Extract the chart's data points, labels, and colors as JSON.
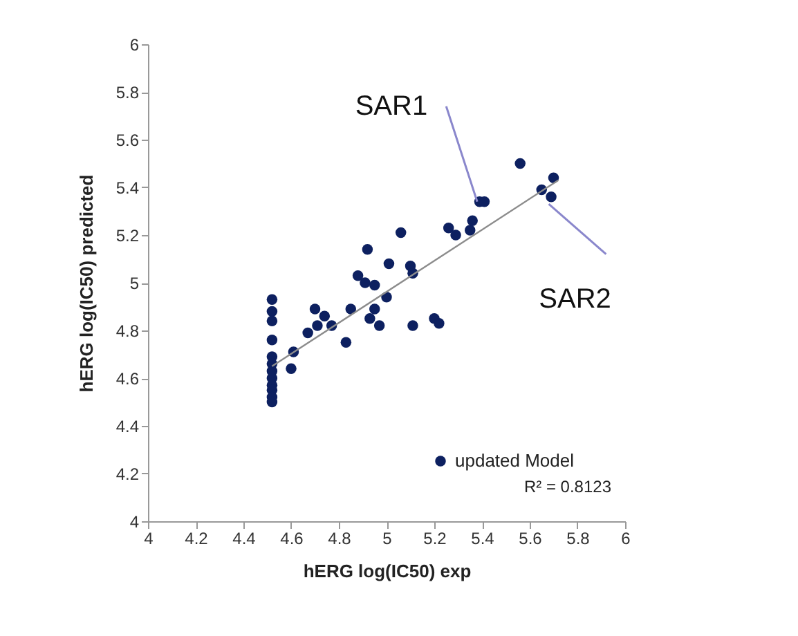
{
  "chart_data": {
    "type": "scatter",
    "xlabel": "hERG log(IC50) exp",
    "ylabel": "hERG log(IC50) predicted",
    "xlim": [
      4,
      6
    ],
    "ylim": [
      4,
      6
    ],
    "xticks": [
      4,
      4.2,
      4.4,
      4.6,
      4.8,
      5,
      5.2,
      5.4,
      5.6,
      5.8,
      6
    ],
    "yticks": [
      4,
      4.2,
      4.4,
      4.6,
      4.8,
      5,
      5.2,
      5.4,
      5.6,
      5.8,
      6
    ],
    "grid": false,
    "legend": "bottom right",
    "series": [
      {
        "name": "updated Model",
        "color": "#0d2060",
        "marker": "circle",
        "x": [
          4.52,
          4.52,
          4.52,
          4.52,
          4.52,
          4.52,
          4.52,
          4.52,
          4.52,
          4.52,
          4.52,
          4.52,
          4.6,
          4.61,
          4.67,
          4.7,
          4.71,
          4.74,
          4.77,
          4.83,
          4.85,
          4.88,
          4.91,
          4.92,
          4.93,
          4.95,
          4.95,
          4.97,
          5.0,
          5.01,
          5.1,
          5.11,
          5.11,
          5.2,
          5.22,
          5.06,
          5.26,
          5.29,
          5.35,
          5.36,
          5.39,
          5.41,
          5.56,
          5.65,
          5.69,
          5.7
        ],
        "values": [
          4.93,
          4.88,
          4.84,
          4.76,
          4.69,
          4.66,
          4.63,
          4.6,
          4.57,
          4.55,
          4.52,
          4.5,
          4.64,
          4.71,
          4.79,
          4.89,
          4.82,
          4.86,
          4.82,
          4.75,
          4.89,
          5.03,
          5.0,
          5.14,
          4.85,
          4.89,
          4.99,
          4.82,
          4.94,
          5.08,
          5.07,
          5.04,
          4.82,
          4.85,
          4.83,
          5.21,
          5.23,
          5.2,
          5.22,
          5.26,
          5.34,
          5.34,
          5.5,
          5.39,
          5.36,
          5.44
        ]
      },
      {
        "type": "line",
        "color": "#8c8c8c",
        "x": [
          4.52,
          5.72
        ],
        "values": [
          4.65,
          5.43
        ]
      }
    ],
    "annotations": [
      {
        "text": "SAR1",
        "x": 5.38,
        "y": 5.34
      },
      {
        "text": "SAR2",
        "x": 5.68,
        "y": 5.33
      },
      "R² = 0.8123"
    ]
  }
}
